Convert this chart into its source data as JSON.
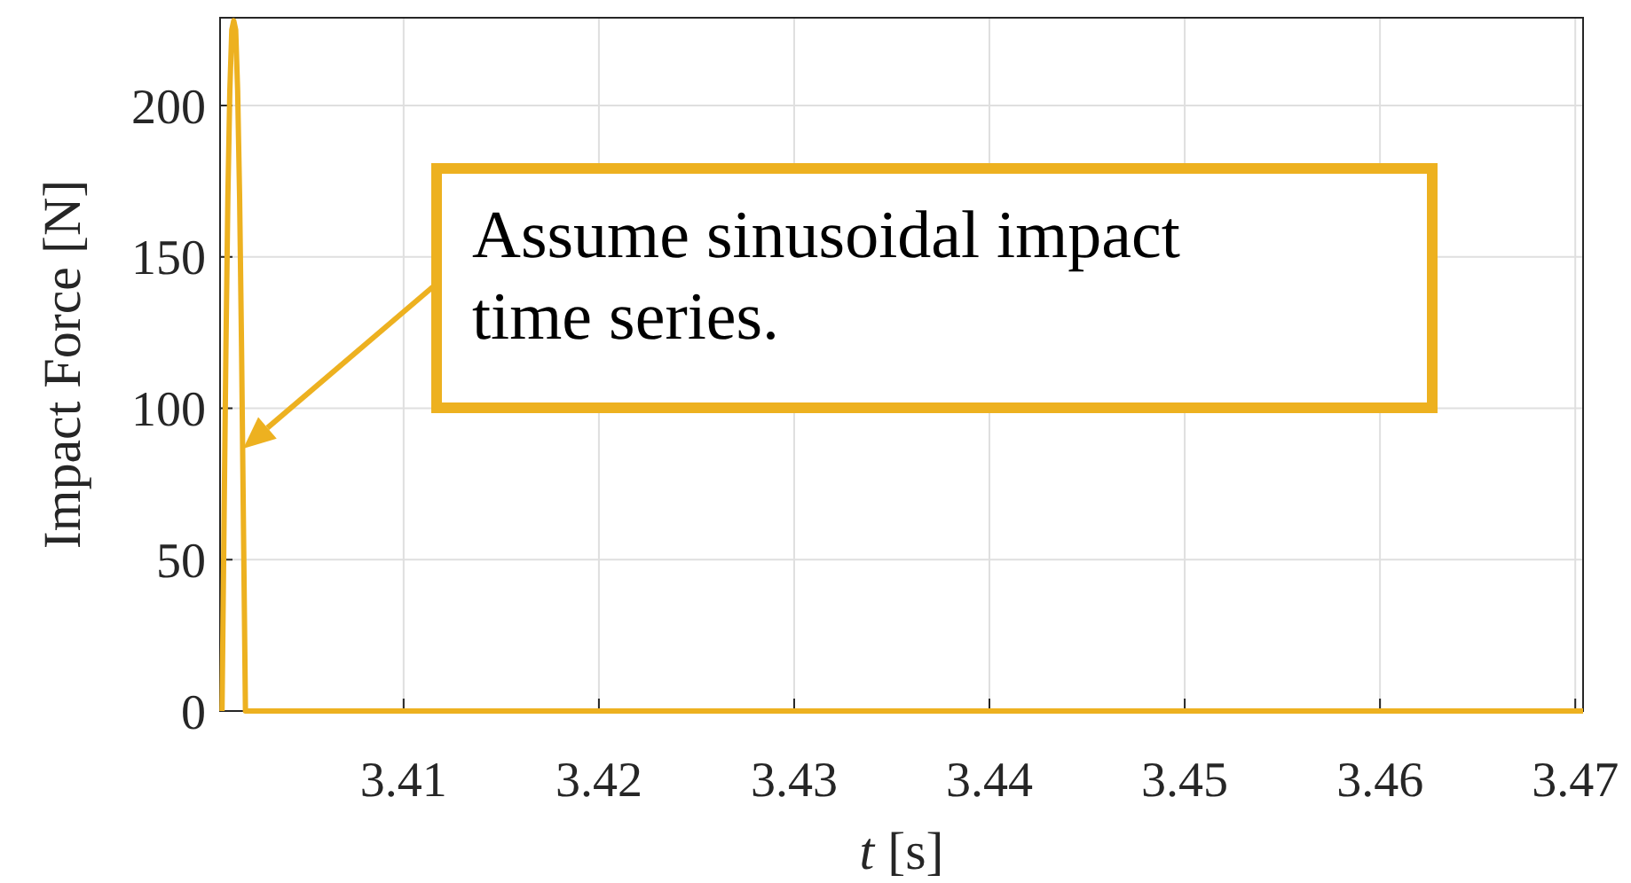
{
  "chart_data": {
    "type": "line",
    "xlabel": "t [s]",
    "ylabel": "Impact Force [N]",
    "x": [
      3.4007,
      3.4008,
      3.4009,
      3.401,
      3.4011,
      3.4012,
      3.4013,
      3.4014,
      3.4015,
      3.4016,
      3.4017,
      3.4018,
      3.4019,
      3.4704
    ],
    "series": [
      {
        "color": "#edb120",
        "values": [
          0,
          60,
          120,
          170,
          205,
          225,
          228,
          225,
          205,
          170,
          120,
          60,
          0,
          0
        ]
      }
    ],
    "xlim": [
      3.4006,
      3.4704
    ],
    "xticks": [
      3.41,
      3.42,
      3.43,
      3.44,
      3.45,
      3.46,
      3.47
    ],
    "ylim": [
      0,
      229
    ],
    "yticks": [
      0,
      50,
      100,
      150,
      200
    ],
    "grid": true,
    "marker": "none",
    "line_style": "solid",
    "annotations": [
      "Assume sinusoidal impact time series."
    ]
  }
}
